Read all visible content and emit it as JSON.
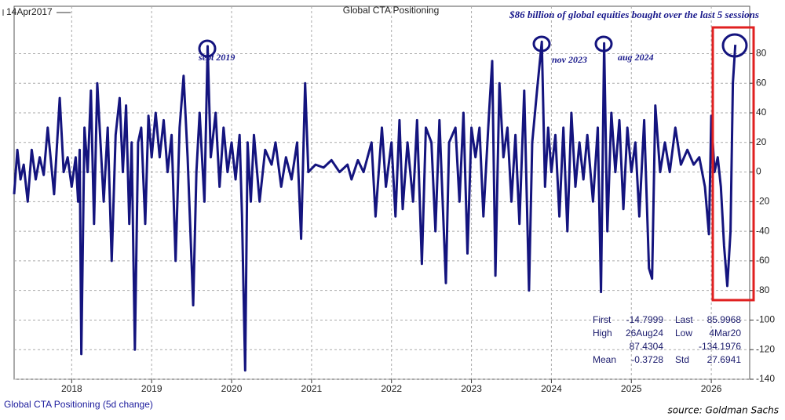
{
  "chart_data": {
    "type": "line",
    "title": "Global CTA Positioning",
    "start_label": "14Apr2017",
    "headline": "$86 billion of global equities bought over the last 5 sessions",
    "source": "source: Goldman Sachs",
    "annotations": [
      {
        "text": "sept 2019"
      },
      {
        "text": "nov 2023"
      },
      {
        "text": "aug 2024"
      }
    ],
    "stats": [
      [
        "First",
        "-14.7999",
        "Last",
        "85.9968"
      ],
      [
        "High",
        "26Aug24",
        "Low",
        "4Mar20"
      ],
      [
        "87.4304",
        "-134.1976"
      ],
      [
        "Mean",
        "-0.3728",
        "Std",
        "27.6941"
      ]
    ],
    "xlim": [
      2017.28,
      2026.48
    ],
    "xticks": [
      2018,
      2019,
      2020,
      2021,
      2022,
      2023,
      2024,
      2025,
      2026
    ],
    "ylim": [
      -140,
      112
    ],
    "yticks": [
      -140,
      -120,
      -100,
      -80,
      -60,
      -40,
      -20,
      0,
      20,
      40,
      60,
      80
    ],
    "grid": true,
    "x": [
      2017.28,
      2017.32,
      2017.36,
      2017.4,
      2017.45,
      2017.5,
      2017.55,
      2017.6,
      2017.65,
      2017.7,
      2017.78,
      2017.85,
      2017.9,
      2017.95,
      2018,
      2018.05,
      2018.08,
      2018.1,
      2018.12,
      2018.16,
      2018.2,
      2018.24,
      2018.28,
      2018.32,
      2018.36,
      2018.4,
      2018.45,
      2018.5,
      2018.55,
      2018.6,
      2018.64,
      2018.68,
      2018.72,
      2018.75,
      2018.79,
      2018.83,
      2018.87,
      2018.92,
      2018.96,
      2019,
      2019.05,
      2019.1,
      2019.15,
      2019.2,
      2019.25,
      2019.3,
      2019.35,
      2019.4,
      2019.45,
      2019.52,
      2019.56,
      2019.6,
      2019.66,
      2019.7,
      2019.74,
      2019.8,
      2019.85,
      2019.9,
      2019.95,
      2020,
      2020.05,
      2020.1,
      2020.13,
      2020.17,
      2020.2,
      2020.24,
      2020.28,
      2020.35,
      2020.42,
      2020.5,
      2020.55,
      2020.62,
      2020.68,
      2020.75,
      2020.82,
      2020.87,
      2020.92,
      2020.96,
      2021.05,
      2021.15,
      2021.25,
      2021.35,
      2021.45,
      2021.5,
      2021.58,
      2021.65,
      2021.75,
      2021.8,
      2021.88,
      2021.93,
      2022,
      2022.05,
      2022.1,
      2022.14,
      2022.2,
      2022.27,
      2022.32,
      2022.38,
      2022.43,
      2022.5,
      2022.55,
      2022.6,
      2022.68,
      2022.72,
      2022.8,
      2022.85,
      2022.9,
      2022.95,
      2023,
      2023.05,
      2023.1,
      2023.15,
      2023.22,
      2023.26,
      2023.3,
      2023.35,
      2023.4,
      2023.45,
      2023.5,
      2023.55,
      2023.6,
      2023.66,
      2023.72,
      2023.76,
      2023.82,
      2023.88,
      2023.92,
      2023.96,
      2024,
      2024.05,
      2024.1,
      2024.15,
      2024.2,
      2024.25,
      2024.3,
      2024.35,
      2024.4,
      2024.45,
      2024.52,
      2024.58,
      2024.62,
      2024.66,
      2024.7,
      2024.75,
      2024.8,
      2024.85,
      2024.9,
      2024.95,
      2025,
      2025.05,
      2025.1,
      2025.16,
      2025.22,
      2025.26,
      2025.3,
      2025.36,
      2025.42,
      2025.48,
      2025.55,
      2025.62,
      2025.7,
      2025.78,
      2025.85,
      2025.92,
      2025.97,
      2026,
      2026.04,
      2026.08,
      2026.12,
      2026.16,
      2026.2,
      2026.24,
      2026.27,
      2026.3
    ],
    "series": [
      {
        "name": "Global CTA Positioning (5d change)",
        "color": "#14147e",
        "values": [
          -15,
          15,
          -5,
          5,
          -20,
          15,
          -5,
          10,
          -2,
          30,
          -15,
          50,
          0,
          10,
          -10,
          10,
          -20,
          15,
          -123,
          30,
          0,
          55,
          -35,
          60,
          20,
          -20,
          30,
          -60,
          25,
          50,
          0,
          45,
          -35,
          20,
          -120,
          20,
          30,
          -35,
          38,
          10,
          40,
          10,
          35,
          0,
          25,
          -60,
          30,
          65,
          10,
          -90,
          0,
          40,
          -20,
          85,
          10,
          40,
          -10,
          30,
          0,
          20,
          -5,
          25,
          -30,
          -134,
          20,
          -20,
          25,
          -20,
          15,
          5,
          20,
          -10,
          10,
          -5,
          20,
          -45,
          60,
          0,
          5,
          3,
          8,
          0,
          5,
          -5,
          8,
          0,
          20,
          -30,
          30,
          -10,
          20,
          -30,
          35,
          -25,
          20,
          -20,
          35,
          -62,
          30,
          20,
          -40,
          35,
          -75,
          20,
          30,
          -20,
          40,
          -55,
          30,
          10,
          30,
          -30,
          40,
          75,
          -70,
          60,
          10,
          30,
          -20,
          25,
          -35,
          55,
          -80,
          20,
          55,
          88,
          -10,
          30,
          0,
          25,
          -30,
          30,
          -40,
          40,
          -10,
          20,
          -5,
          25,
          -20,
          30,
          -81,
          87,
          -40,
          40,
          0,
          35,
          -25,
          30,
          0,
          20,
          -30,
          35,
          -65,
          -72,
          45,
          0,
          20,
          0,
          30,
          5,
          15,
          5,
          10,
          -10,
          -42,
          38,
          0,
          10,
          -10,
          -50,
          -77,
          -40,
          60,
          86
        ]
      }
    ]
  }
}
